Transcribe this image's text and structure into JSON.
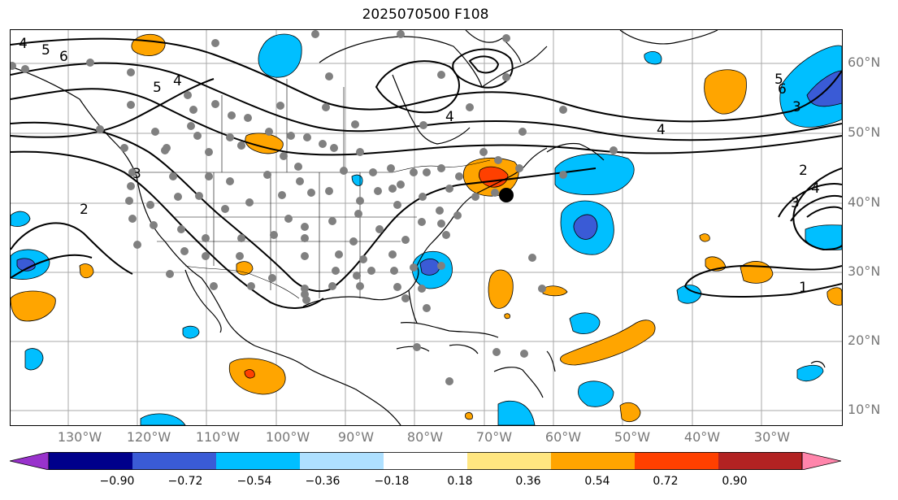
{
  "title": "2025070500 F108",
  "lat_labels": [
    "60°N",
    "50°N",
    "40°N",
    "30°N",
    "20°N",
    "10°N"
  ],
  "lon_labels": [
    "130°W",
    "120°W",
    "110°W",
    "100°W",
    "90°W",
    "80°W",
    "70°W",
    "60°W",
    "50°W",
    "40°W",
    "30°W"
  ],
  "contour_labels": [
    "4",
    "5",
    "6",
    "5",
    "4",
    "4",
    "3",
    "2",
    "4",
    "3",
    "6",
    "5",
    "2",
    "3",
    "4",
    "1"
  ],
  "colorbar": {
    "colors": [
      "#9932cc",
      "#00008b",
      "#3a5bd6",
      "#00bfff",
      "#aee0ff",
      "#ffffff",
      "#ffe680",
      "#ffa500",
      "#ff4000",
      "#b22222",
      "#ff85ab"
    ],
    "tick_labels": [
      "−0.90",
      "−0.72",
      "−0.54",
      "−0.36",
      "−0.18",
      "0.18",
      "0.36",
      "0.54",
      "0.72",
      "0.90"
    ]
  },
  "colors": {
    "positive_fill": "#ffa500",
    "positive_strong": "#ff4000",
    "negative_fill": "#00bfff",
    "negative_strong": "#3a5bd6",
    "contour": "#000000",
    "grid": "#aaaaaa",
    "station": "#808080"
  }
}
